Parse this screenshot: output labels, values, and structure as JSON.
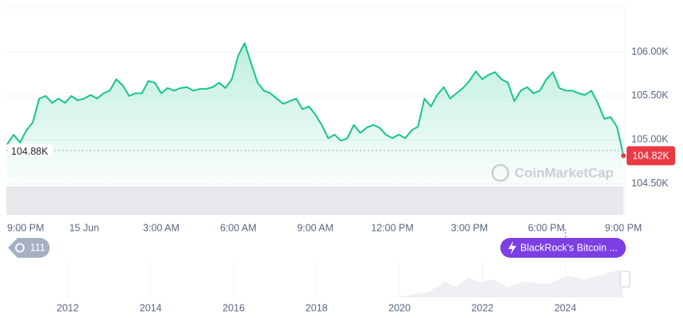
{
  "chart_data": {
    "type": "line",
    "categories": [
      "9:00 PM",
      null,
      null,
      null,
      null,
      null,
      null,
      null,
      null,
      null,
      null,
      null,
      "15 Jun",
      null,
      null,
      null,
      null,
      null,
      null,
      null,
      null,
      null,
      null,
      null,
      "3:00 AM",
      null,
      null,
      null,
      null,
      null,
      null,
      null,
      null,
      null,
      null,
      null,
      "6:00 AM",
      null,
      null,
      null,
      null,
      null,
      null,
      null,
      null,
      null,
      null,
      null,
      "9:00 AM",
      null,
      null,
      null,
      null,
      null,
      null,
      null,
      null,
      null,
      null,
      null,
      "12:00 PM",
      null,
      null,
      null,
      null,
      null,
      null,
      null,
      null,
      null,
      null,
      null,
      "3:00 PM",
      null,
      null,
      null,
      null,
      null,
      null,
      null,
      null,
      null,
      null,
      null,
      "6:00 PM",
      null,
      null,
      null,
      null,
      null,
      null,
      null,
      null,
      null,
      null,
      null,
      "9:00 PM"
    ],
    "series": [
      {
        "color": "#16c784",
        "values": [
          104950,
          105060,
          104970,
          105110,
          105200,
          105470,
          105500,
          105420,
          105470,
          105420,
          105500,
          105450,
          105470,
          105510,
          105470,
          105530,
          105560,
          105690,
          105620,
          105500,
          105530,
          105530,
          105670,
          105650,
          105530,
          105590,
          105560,
          105590,
          105600,
          105560,
          105580,
          105580,
          105600,
          105650,
          105590,
          105690,
          105960,
          106100,
          105870,
          105650,
          105560,
          105530,
          105470,
          105410,
          105440,
          105470,
          105350,
          105380,
          105290,
          105170,
          105020,
          105060,
          104990,
          105020,
          105170,
          105080,
          105140,
          105170,
          105140,
          105060,
          105020,
          105060,
          105020,
          105110,
          105150,
          105470,
          105380,
          105510,
          105600,
          105470,
          105530,
          105590,
          105670,
          105780,
          105690,
          105740,
          105770,
          105690,
          105650,
          105440,
          105560,
          105600,
          105530,
          105560,
          105690,
          105770,
          105590,
          105560,
          105560,
          105530,
          105510,
          105560,
          105420,
          105240,
          105260,
          105150,
          104820
        ]
      }
    ],
    "ylim": [
      104400,
      106500
    ],
    "yticks": [
      {
        "value": 104500,
        "label": "104.50K"
      },
      {
        "value": 105000,
        "label": "105.00K"
      },
      {
        "value": 105500,
        "label": "105.50K"
      },
      {
        "value": 106000,
        "label": "106.00K"
      }
    ],
    "grid": true,
    "annotations": [
      {
        "value": 104880,
        "label": "104.88K"
      },
      {
        "value": 104820,
        "label": "104.82K"
      }
    ],
    "watermark": "CoinMarketCap",
    "event_count": "111",
    "news_badge": "BlackRock's Bitcoin ...",
    "navigator": {
      "xlim": [
        2010.52,
        2025.4
      ],
      "xticks": [
        2012,
        2014,
        2016,
        2018,
        2020,
        2022,
        2024
      ]
    }
  }
}
